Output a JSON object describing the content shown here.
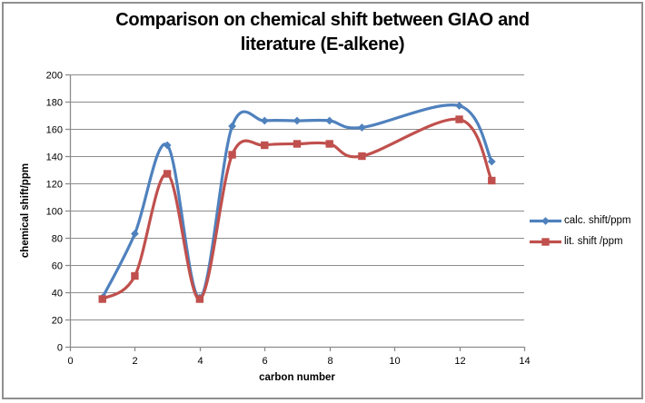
{
  "chart_data": {
    "type": "line",
    "title_lines": [
      "Comparison on chemical shift between GIAO and",
      "literature (E-alkene)"
    ],
    "xlabel": "carbon number",
    "ylabel": "chemical shift/ppm",
    "x": [
      1,
      2,
      3,
      4,
      5,
      6,
      7,
      8,
      9,
      12,
      13
    ],
    "series": [
      {
        "name": "calc. shift/ppm",
        "color": "#4F81BD",
        "marker": "diamond",
        "values": [
          36,
          83,
          148,
          36,
          162,
          166,
          166,
          166,
          161,
          177,
          136
        ]
      },
      {
        "name": "lit. shift /ppm",
        "color": "#C0504D",
        "marker": "square",
        "values": [
          35,
          52,
          127,
          35,
          141,
          148,
          149,
          149,
          140,
          167,
          122
        ]
      }
    ],
    "xlim": [
      0,
      14
    ],
    "ylim": [
      0,
      200
    ],
    "x_ticks": [
      0,
      2,
      4,
      6,
      8,
      10,
      12,
      14
    ],
    "y_ticks": [
      0,
      20,
      40,
      60,
      80,
      100,
      120,
      140,
      160,
      180,
      200
    ],
    "grid": true,
    "smooth": true,
    "legend_position": "right",
    "line_width": 3.2,
    "gridline_color": "#8C8C8C",
    "axis_color": "#8C8C8C",
    "text_color": "#000000",
    "background": "#FFFFFF",
    "border_color": "#8F8F8F"
  }
}
